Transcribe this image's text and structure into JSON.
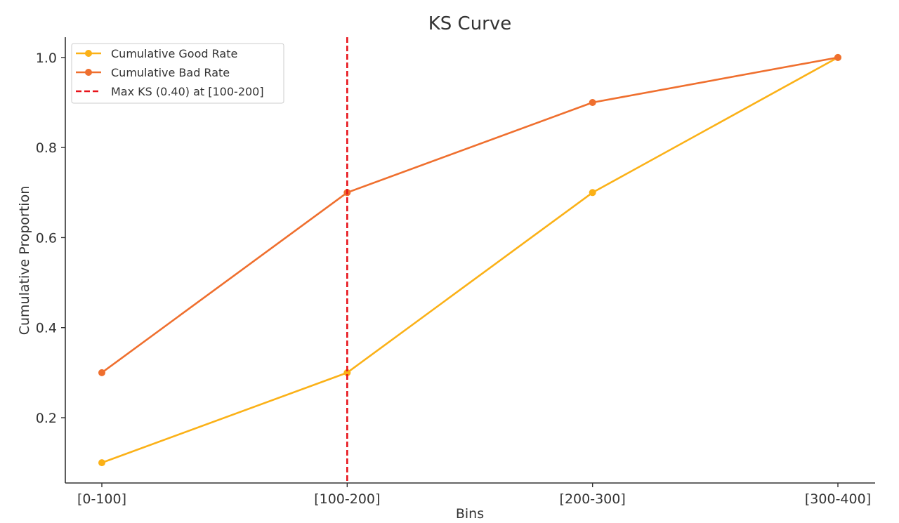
{
  "chart_data": {
    "type": "line",
    "title": "KS Curve",
    "xlabel": "Bins",
    "ylabel": "Cumulative Proportion",
    "categories": [
      "[0-100]",
      "[100-200]",
      "[200-300]",
      "[300-400]"
    ],
    "ylim": [
      0.055,
      1.045
    ],
    "yticks": [
      0.2,
      0.4,
      0.6,
      0.8,
      1.0
    ],
    "ytick_labels": [
      "0.2",
      "0.4",
      "0.6",
      "0.8",
      "1.0"
    ],
    "grid": false,
    "legend_position": "top-left",
    "series": [
      {
        "name": "Cumulative Good Rate",
        "values": [
          0.1,
          0.3,
          0.7,
          1.0
        ],
        "color": "#fbb117",
        "marker": "circle"
      },
      {
        "name": "Cumulative Bad Rate",
        "values": [
          0.3,
          0.7,
          0.9,
          1.0
        ],
        "color": "#ef6f2e",
        "marker": "circle"
      }
    ],
    "reference_line": {
      "name": "Max KS (0.40) at [100-200]",
      "category": "[100-200]",
      "value": 0.4,
      "color": "#e8141b",
      "style": "dashed"
    }
  }
}
